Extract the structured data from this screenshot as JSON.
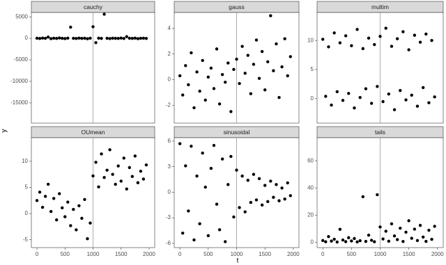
{
  "x_label": "t",
  "y_label": "y",
  "chart_data": [
    {
      "type": "scatter",
      "title": "cauchy",
      "x": [
        0,
        50,
        100,
        150,
        200,
        250,
        300,
        350,
        400,
        450,
        500,
        550,
        600,
        650,
        700,
        750,
        800,
        850,
        900,
        950,
        1000,
        1050,
        1100,
        1150,
        1200,
        1250,
        1300,
        1350,
        1400,
        1450,
        1500,
        1550,
        1600,
        1650,
        1700,
        1750,
        1800,
        1850,
        1900,
        1950
      ],
      "values": [
        20,
        -40,
        60,
        10,
        300,
        -80,
        30,
        -20,
        90,
        0,
        -60,
        40,
        2600,
        10,
        -30,
        50,
        -10,
        20,
        -90,
        30,
        2700,
        -1000,
        40,
        -20,
        5600,
        10,
        -50,
        30,
        0,
        -20,
        60,
        -30,
        400,
        20,
        -10,
        50,
        -70,
        10,
        30,
        -20
      ],
      "xlim": [
        -100,
        2100
      ],
      "ylim": [
        -19700,
        6000
      ],
      "xticks": [
        0,
        500,
        1000,
        1500,
        2000
      ],
      "yticks": [
        -15000,
        -10000,
        -5000,
        0,
        5000
      ],
      "color": "#000000",
      "vline": 1000
    },
    {
      "type": "scatter",
      "title": "gauss",
      "x": [
        0,
        50,
        100,
        150,
        200,
        250,
        300,
        350,
        400,
        450,
        500,
        550,
        600,
        650,
        700,
        750,
        800,
        850,
        900,
        950,
        1000,
        1050,
        1100,
        1150,
        1200,
        1250,
        1300,
        1350,
        1400,
        1450,
        1500,
        1550,
        1600,
        1650,
        1700,
        1750,
        1800,
        1850,
        1900,
        1950
      ],
      "values": [
        0.3,
        -1.2,
        1.1,
        -0.4,
        2.1,
        -2.2,
        0.6,
        -0.9,
        1.5,
        -1.6,
        0.2,
        0.9,
        -0.7,
        2.4,
        -1.9,
        0.4,
        -0.2,
        1.3,
        -2.5,
        0.8,
        1.6,
        -0.3,
        2.6,
        0.5,
        1.9,
        -1.1,
        1.2,
        3.1,
        0.1,
        2.2,
        -0.8,
        1.4,
        5.0,
        0.7,
        2.8,
        -1.4,
        1.0,
        3.2,
        0.3,
        1.8
      ],
      "xlim": [
        -100,
        2100
      ],
      "ylim": [
        -3.4,
        5.25
      ],
      "xticks": [
        0,
        500,
        1000,
        1500,
        2000
      ],
      "yticks": [
        -2,
        0,
        2,
        4
      ],
      "color": "#000000",
      "vline": 1000
    },
    {
      "type": "scatter",
      "title": "multim",
      "x": [
        0,
        50,
        100,
        150,
        200,
        250,
        300,
        350,
        400,
        450,
        500,
        550,
        600,
        650,
        700,
        750,
        800,
        850,
        900,
        950,
        1000,
        1050,
        1100,
        1150,
        1200,
        1250,
        1300,
        1350,
        1400,
        1450,
        1500,
        1550,
        1600,
        1650,
        1700,
        1750,
        1800,
        1850,
        1900,
        1950
      ],
      "values": [
        10.2,
        0.4,
        8.9,
        -1.1,
        11.3,
        1.2,
        9.6,
        -0.3,
        10.8,
        0.9,
        9.1,
        -1.6,
        11.9,
        0.2,
        8.6,
        1.7,
        10.4,
        -0.8,
        9.3,
        2.1,
        10.7,
        -0.5,
        12.1,
        0.8,
        9.0,
        -1.9,
        10.3,
        1.4,
        11.5,
        -0.2,
        8.4,
        0.6,
        10.9,
        -1.3,
        9.7,
        1.9,
        11.1,
        -0.7,
        10.0,
        0.3
      ],
      "xlim": [
        -100,
        2100
      ],
      "ylim": [
        -4.2,
        14.8
      ],
      "xticks": [
        0,
        500,
        1000,
        1500,
        2000
      ],
      "yticks": [
        0,
        5,
        10
      ],
      "color": "#000000",
      "vline": 1000
    },
    {
      "type": "scatter",
      "title": "OUmean",
      "x": [
        0,
        50,
        100,
        150,
        200,
        250,
        300,
        350,
        400,
        450,
        500,
        550,
        600,
        650,
        700,
        750,
        800,
        850,
        900,
        950,
        1000,
        1050,
        1100,
        1150,
        1200,
        1250,
        1300,
        1350,
        1400,
        1450,
        1500,
        1550,
        1600,
        1650,
        1700,
        1750,
        1800,
        1850,
        1900,
        1950
      ],
      "values": [
        2.5,
        4.1,
        1.2,
        3.3,
        5.6,
        0.4,
        2.9,
        -1.2,
        3.8,
        1.1,
        -0.6,
        2.2,
        -2.3,
        0.8,
        -3.1,
        1.5,
        -0.9,
        2.7,
        -4.8,
        -1.8,
        7.2,
        9.8,
        5.1,
        11.4,
        6.9,
        8.3,
        12.2,
        7.5,
        5.6,
        9.1,
        6.2,
        10.6,
        4.7,
        8.8,
        7.1,
        11.0,
        5.9,
        8.1,
        6.6,
        9.3
      ],
      "xlim": [
        -100,
        2100
      ],
      "ylim": [
        -6.5,
        14.5
      ],
      "xticks": [
        0,
        500,
        1000,
        1500,
        2000
      ],
      "yticks": [
        -5,
        0,
        5,
        10
      ],
      "color": "#000000",
      "vline": 1000
    },
    {
      "type": "scatter",
      "title": "sinusoidal",
      "x": [
        0,
        50,
        100,
        150,
        200,
        250,
        300,
        350,
        400,
        450,
        500,
        550,
        600,
        650,
        700,
        750,
        800,
        850,
        900,
        950,
        1000,
        1050,
        1100,
        1150,
        1200,
        1250,
        1300,
        1350,
        1400,
        1450,
        1500,
        1550,
        1600,
        1650,
        1700,
        1750,
        1800,
        1850,
        1900,
        1950
      ],
      "values": [
        5.7,
        -4.8,
        3.1,
        -2.2,
        5.4,
        -5.6,
        1.9,
        -3.7,
        4.6,
        0.6,
        -5.1,
        2.8,
        5.5,
        -1.4,
        -4.4,
        3.9,
        -5.8,
        0.9,
        4.2,
        -2.9,
        2.6,
        -1.8,
        1.9,
        -2.3,
        1.4,
        -1.2,
        2.1,
        -0.9,
        1.6,
        -1.5,
        0.8,
        -1.1,
        1.3,
        -0.6,
        0.9,
        -1.0,
        0.5,
        -0.8,
        1.1,
        -0.4
      ],
      "xlim": [
        -100,
        2100
      ],
      "ylim": [
        -6.5,
        6.4
      ],
      "xticks": [
        0,
        500,
        1000,
        1500,
        2000
      ],
      "yticks": [
        -6,
        -3,
        0,
        3,
        6
      ],
      "color": "#000000",
      "vline": 1000
    },
    {
      "type": "scatter",
      "title": "tails",
      "x": [
        0,
        50,
        100,
        150,
        200,
        250,
        300,
        350,
        400,
        450,
        500,
        550,
        600,
        650,
        700,
        750,
        800,
        850,
        900,
        950,
        1000,
        1050,
        1100,
        1150,
        1200,
        1250,
        1300,
        1350,
        1400,
        1450,
        1500,
        1550,
        1600,
        1650,
        1700,
        1750,
        1800,
        1850,
        1900,
        1950
      ],
      "values": [
        1.2,
        0.3,
        4.1,
        0.8,
        2.2,
        0.1,
        9.5,
        1.6,
        0.4,
        3.3,
        0.9,
        2.7,
        0.2,
        1.1,
        33.5,
        0.6,
        5.2,
        1.4,
        0.3,
        35.0,
        11.2,
        2.4,
        8.1,
        0.7,
        13.5,
        4.6,
        1.9,
        10.3,
        0.5,
        7.4,
        15.8,
        2.9,
        9.6,
        1.2,
        12.4,
        3.8,
        0.6,
        8.8,
        2.1,
        11.7
      ],
      "xlim": [
        -100,
        2100
      ],
      "ylim": [
        -4,
        77
      ],
      "xticks": [
        0,
        500,
        1000,
        1500,
        2000
      ],
      "yticks": [
        0,
        20,
        40,
        60
      ],
      "color": "#000000",
      "vline": 1000
    }
  ]
}
